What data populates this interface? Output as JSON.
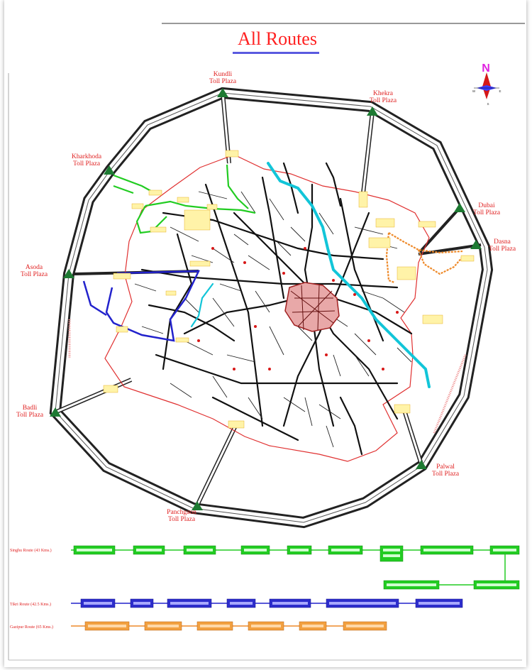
{
  "page": {
    "title": "All Routes"
  },
  "compass": {
    "north": "N",
    "south": "S",
    "east": "E",
    "west": "W"
  },
  "toll_plazas": [
    {
      "name": "Kundli",
      "suffix": "Toll Plaza"
    },
    {
      "name": "Khekra",
      "suffix": "Toll Plaza"
    },
    {
      "name": "Kharkhoda",
      "suffix": "Toll Plaza"
    },
    {
      "name": "Dubai",
      "suffix": "Toll Plaza"
    },
    {
      "name": "Dasna",
      "suffix": "Toll Plaza"
    },
    {
      "name": "Asoda",
      "suffix": "Toll Plaza"
    },
    {
      "name": "Badli",
      "suffix": "Toll Plaza"
    },
    {
      "name": "Palwal",
      "suffix": "Toll Plaza"
    },
    {
      "name": "Panchgaon",
      "suffix": "Toll Plaza"
    }
  ],
  "routes": [
    {
      "name": "Singhu Route (43 Kms.)",
      "color": "#22cc22"
    },
    {
      "name": "Tikri Route (42.5 Kms.)",
      "color": "#2222cc"
    },
    {
      "name": "Gazipur Route (65 Kms.)",
      "color": "#ee8a2a"
    }
  ],
  "colors": {
    "toll_marker": "#1d7a32",
    "title": "#ff2020",
    "city_boundary": "#e03030"
  }
}
